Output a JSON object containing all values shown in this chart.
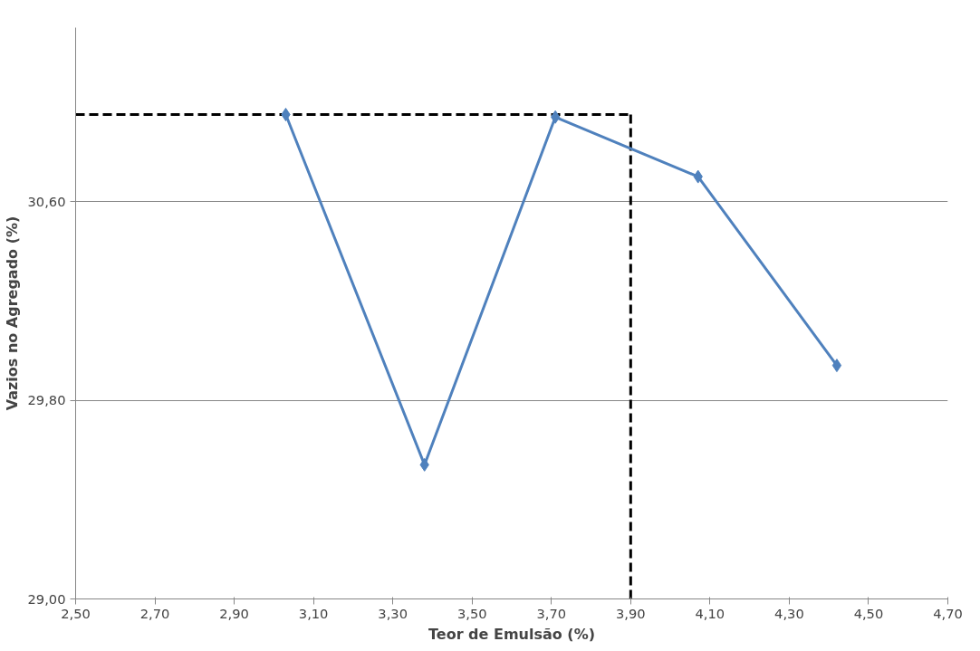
{
  "chart_data": {
    "type": "line",
    "xlabel": "Teor de Emulsão (%)",
    "ylabel": "Vazios no Agregado (%)",
    "x": [
      3.03,
      3.38,
      3.71,
      4.07,
      4.42
    ],
    "series": [
      {
        "color": "#4f81bd",
        "values": [
          30.95,
          29.54,
          30.94,
          30.7,
          29.94
        ]
      }
    ],
    "xlim": [
      2.5,
      4.7
    ],
    "xticks": [
      {
        "value": 2.5,
        "label": "2,50"
      },
      {
        "value": 2.7,
        "label": "2,70"
      },
      {
        "value": 2.9,
        "label": "2,90"
      },
      {
        "value": 3.1,
        "label": "3,10"
      },
      {
        "value": 3.3,
        "label": "3,30"
      },
      {
        "value": 3.5,
        "label": "3,50"
      },
      {
        "value": 3.7,
        "label": "3,70"
      },
      {
        "value": 3.9,
        "label": "3,90"
      },
      {
        "value": 4.1,
        "label": "4,10"
      },
      {
        "value": 4.3,
        "label": "4,30"
      },
      {
        "value": 4.5,
        "label": "4,50"
      },
      {
        "value": 4.7,
        "label": "4,70"
      }
    ],
    "ylim": [
      29.0,
      31.3
    ],
    "yticks": [
      {
        "value": 29.0,
        "label": "29,00"
      },
      {
        "value": 29.8,
        "label": "29,80"
      },
      {
        "value": 30.6,
        "label": "30,60"
      }
    ],
    "grid": "y",
    "marker": "diamond",
    "line_style": "solid",
    "ref_lines": [
      {
        "axis": "y",
        "value": 30.95,
        "color": "#000000",
        "line_style": "dashed"
      },
      {
        "axis": "x",
        "value": 3.9,
        "color": "#000000",
        "line_style": "dashed"
      }
    ]
  }
}
